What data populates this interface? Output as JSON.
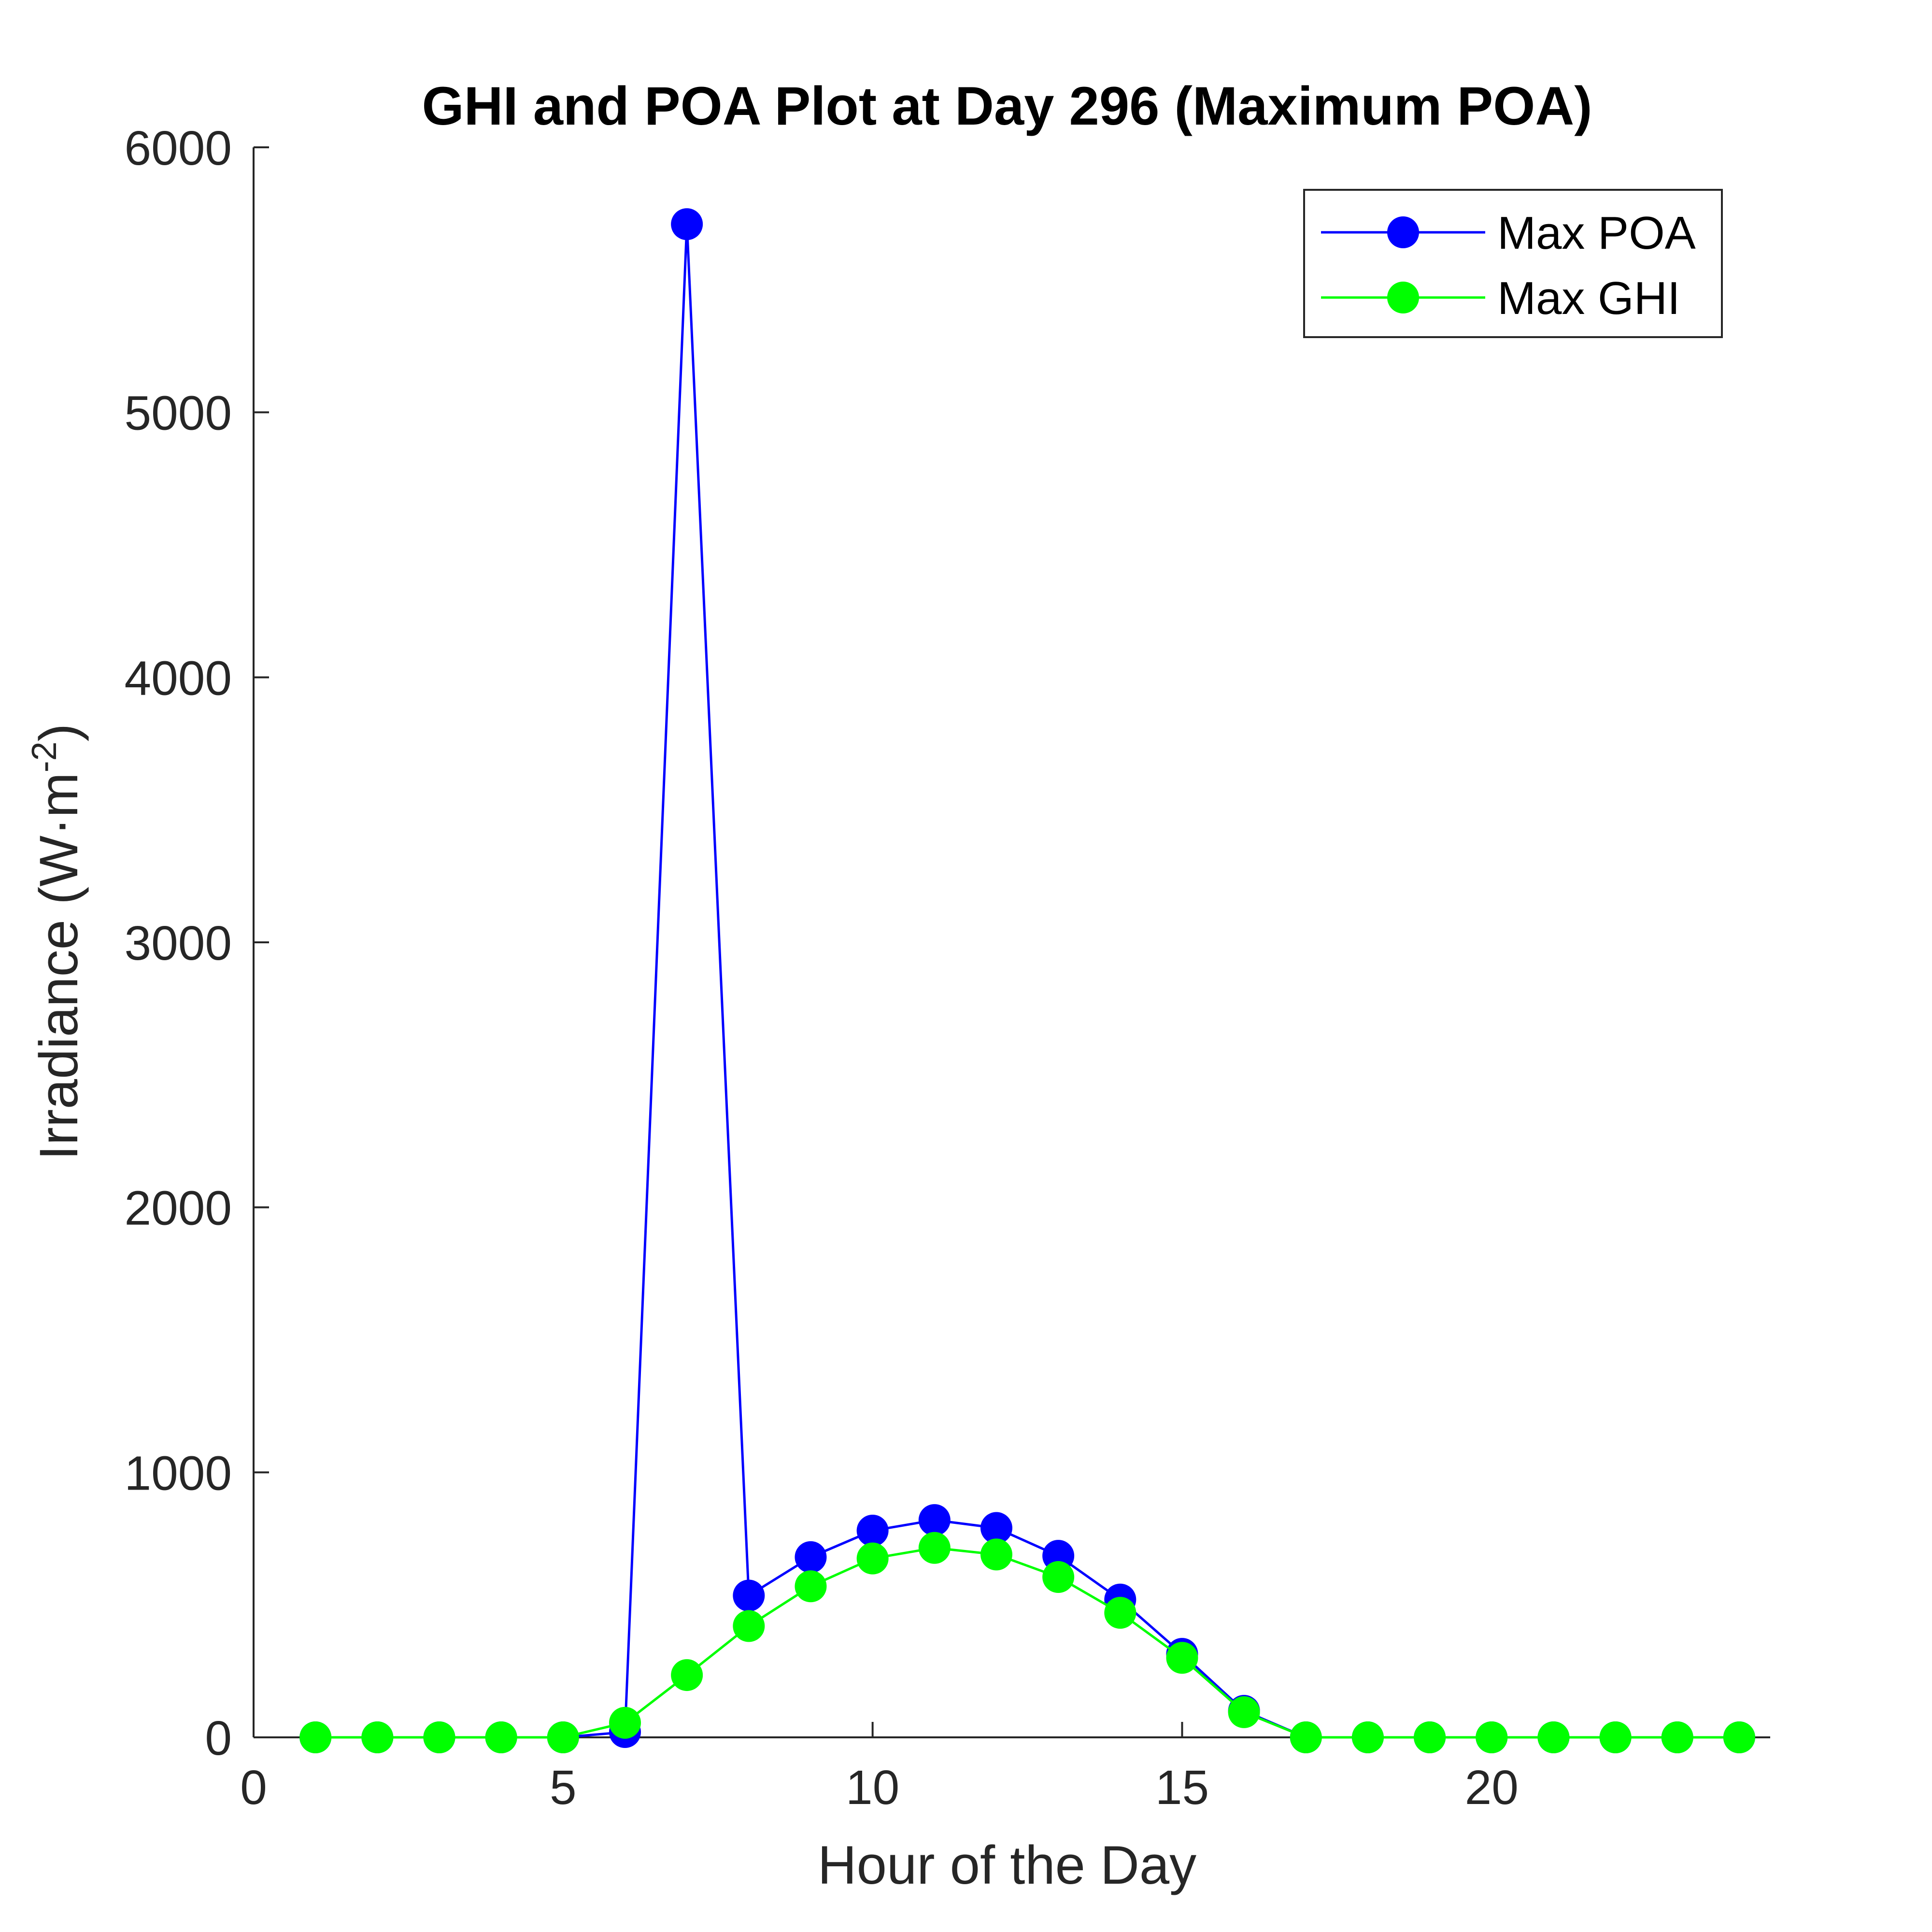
{
  "chart_data": {
    "type": "line",
    "title": "GHI and POA Plot at Day 296 (Maximum POA)",
    "xlabel": "Hour of the Day",
    "ylabel": {
      "base": "Irradiance (W·m",
      "superscript": "-2",
      "suffix": ")"
    },
    "xlim": [
      0,
      24.5
    ],
    "ylim": [
      0,
      6000
    ],
    "xticks": [
      0,
      5,
      10,
      15,
      20
    ],
    "yticks": [
      0,
      1000,
      2000,
      3000,
      4000,
      5000,
      6000
    ],
    "grid": false,
    "legend_position": "top-right",
    "series": [
      {
        "name": "Max POA",
        "color": "#0000ff",
        "x": [
          1,
          2,
          3,
          4,
          5,
          6,
          7,
          8,
          9,
          10,
          11,
          12,
          13,
          14,
          15,
          16,
          17,
          18,
          19,
          20,
          21,
          22,
          23,
          24
        ],
        "values": [
          0,
          0,
          0,
          0,
          0,
          20,
          5710,
          535,
          680,
          780,
          820,
          790,
          685,
          520,
          315,
          100,
          0,
          0,
          0,
          0,
          0,
          0,
          0,
          0
        ]
      },
      {
        "name": "Max GHI",
        "color": "#00ff00",
        "x": [
          1,
          2,
          3,
          4,
          5,
          6,
          7,
          8,
          9,
          10,
          11,
          12,
          13,
          14,
          15,
          16,
          17,
          18,
          19,
          20,
          21,
          22,
          23,
          24
        ],
        "values": [
          0,
          0,
          0,
          0,
          0,
          55,
          235,
          420,
          570,
          675,
          715,
          690,
          605,
          470,
          300,
          95,
          0,
          0,
          0,
          0,
          0,
          0,
          0,
          0
        ]
      }
    ]
  }
}
